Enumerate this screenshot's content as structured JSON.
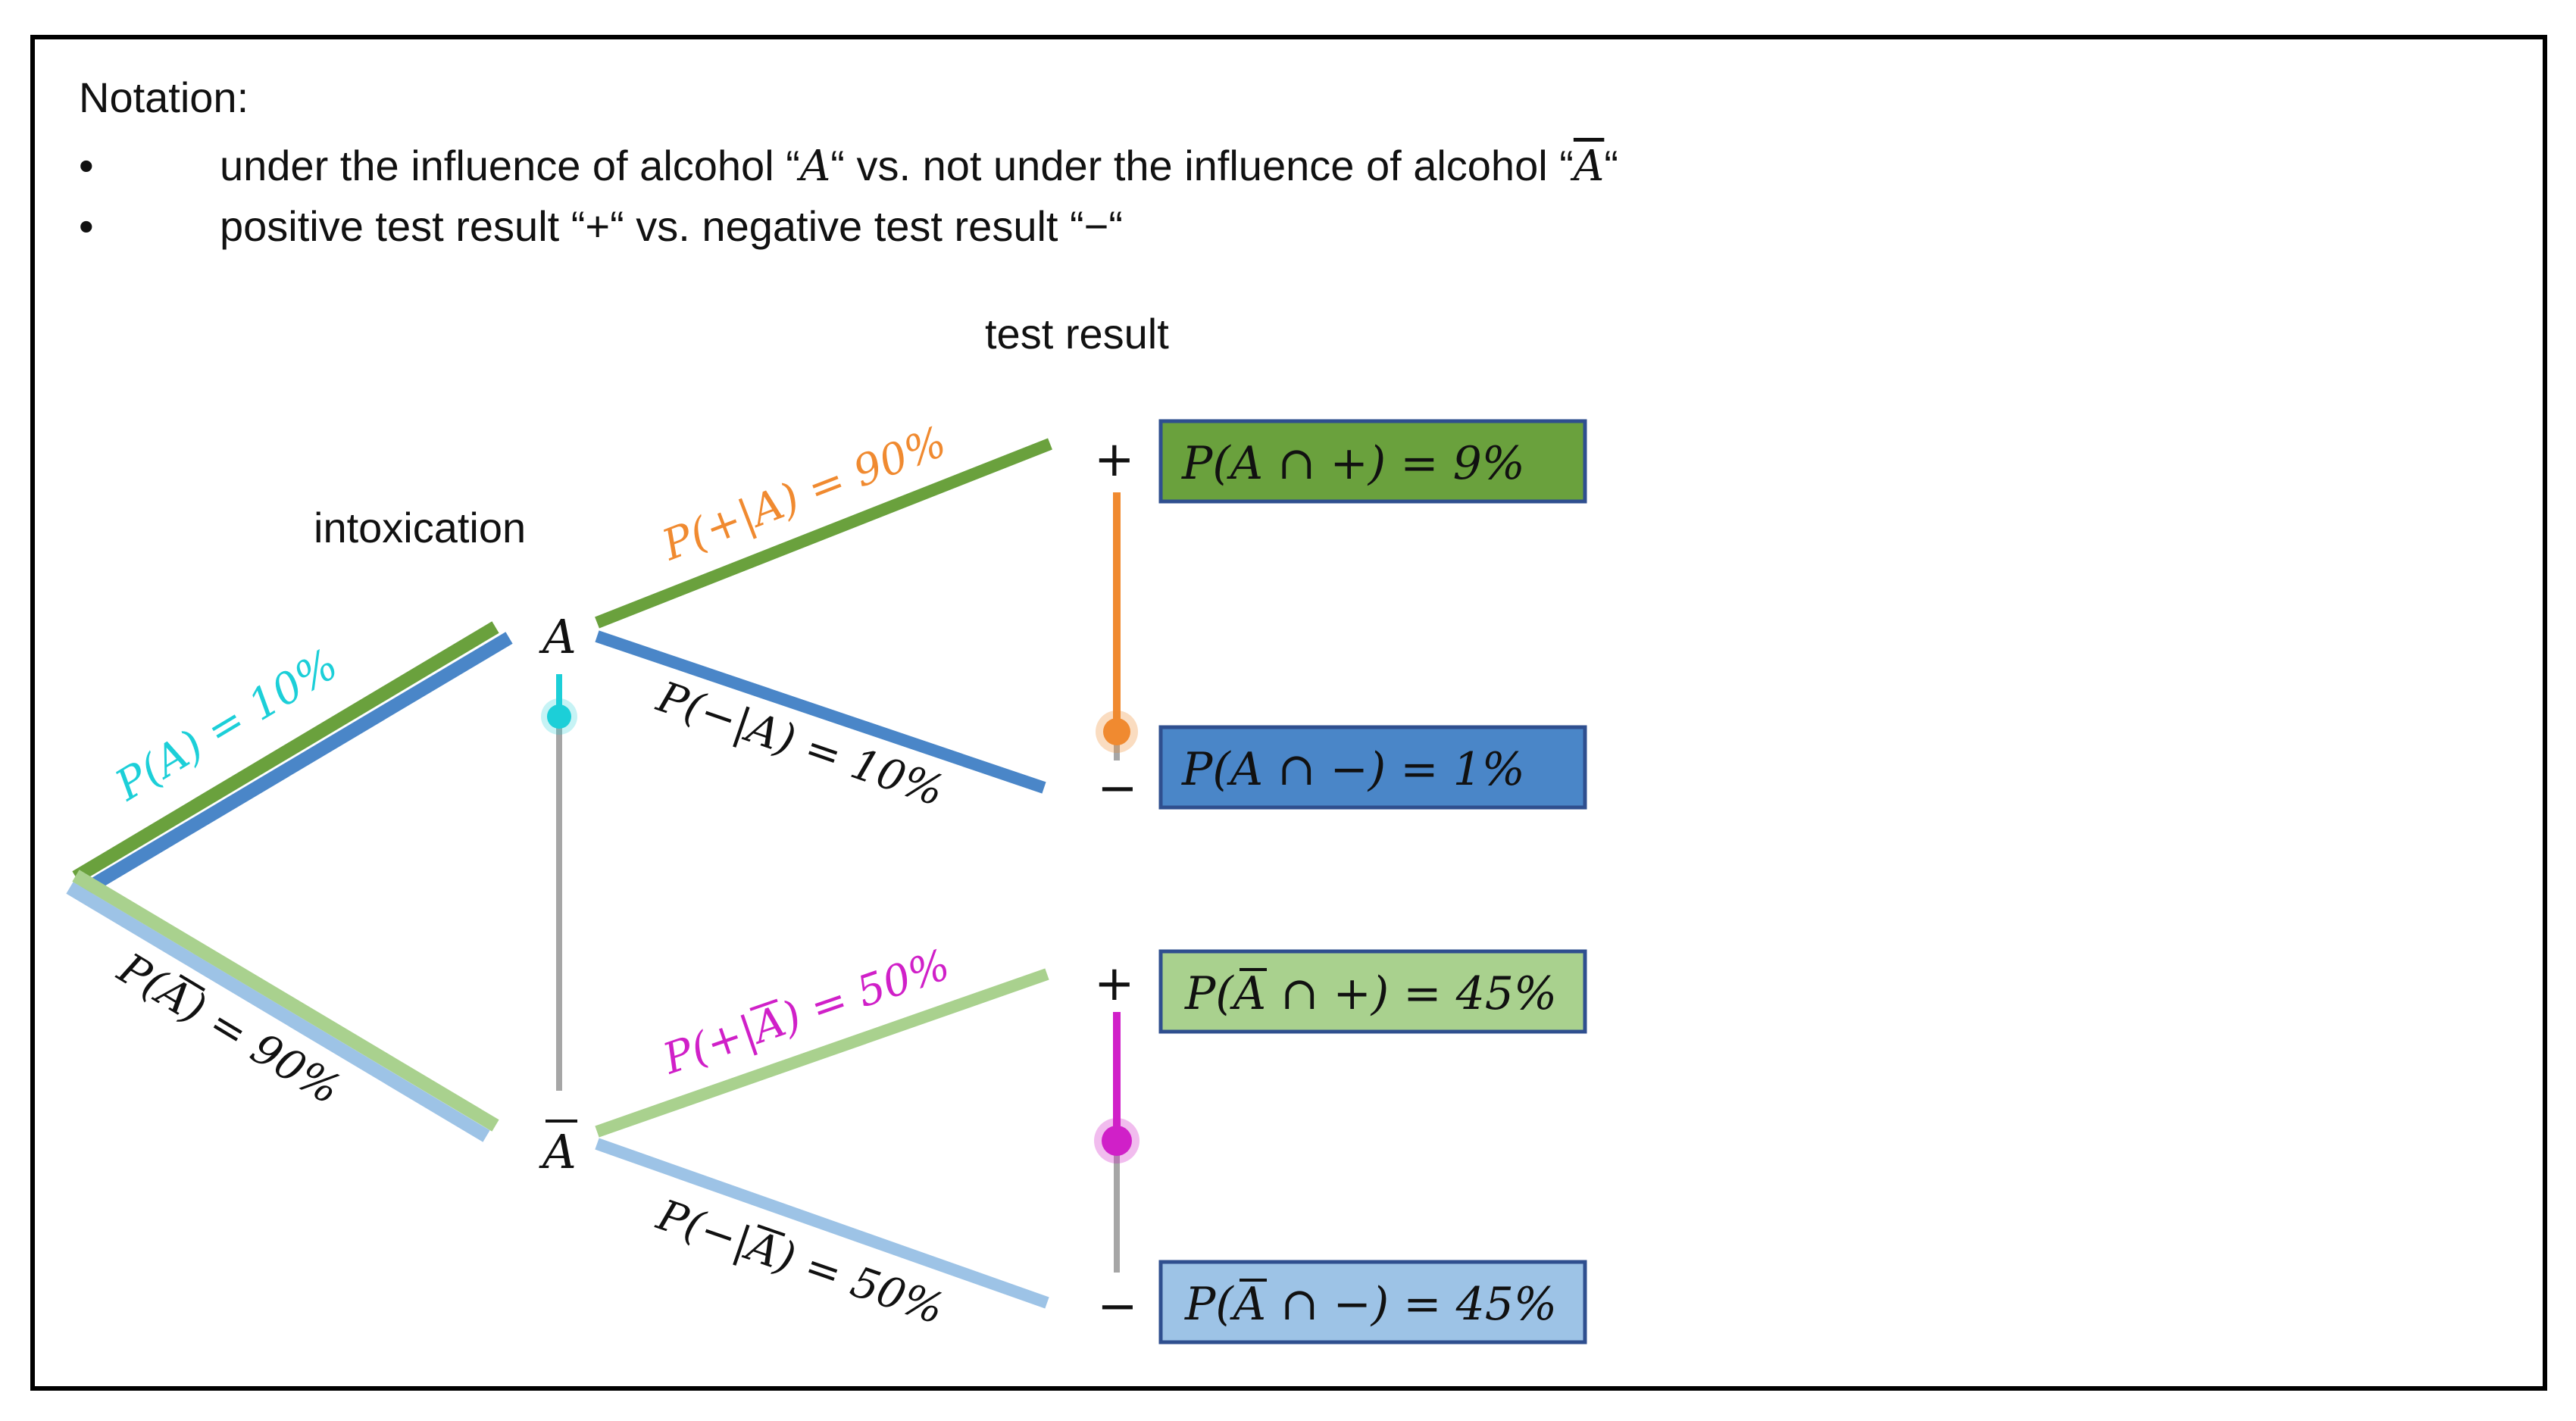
{
  "notation": {
    "heading": "Notation:",
    "bullets": [
      {
        "symbol": "•",
        "prefix": "under the influence of alcohol “",
        "var1": "A",
        "mid": "“ vs. not under the influence of alcohol “",
        "var2": "A",
        "suffix": "“"
      },
      {
        "symbol": "•",
        "prefix": "positive test result “+“ vs. negative test result “−“"
      }
    ]
  },
  "levels": {
    "intoxication": "intoxication",
    "test_result": "test result"
  },
  "nodes": {
    "A": "A",
    "A_bar": "A",
    "plus_top": "+",
    "minus_top": "−",
    "plus_bottom": "+",
    "minus_bottom": "−"
  },
  "branches": {
    "p_A": "P(A) = 10%",
    "p_notA": "P(A) = 90%",
    "p_plus_given_A": "P(+|A) = 90%",
    "p_minus_given_A": "P(−|A) = 10%",
    "p_plus_given_notA": "P(+|A) = 50%",
    "p_minus_given_notA": "P(−|A) = 50%"
  },
  "outcomes": {
    "A_and_plus": "P(A ∩ +) = 9%",
    "A_and_minus": "P(A ∩ −) = 1%",
    "notA_and_plus": "P(A ∩ +) = 45%",
    "notA_and_minus": "P(A ∩ −) = 45%"
  },
  "colors": {
    "dark_green": "#6aa13d",
    "dark_blue": "#4a86c8",
    "light_green": "#a9d18e",
    "light_blue": "#9dc3e6",
    "cyan": "#1ccfd8",
    "orange": "#f08a30",
    "magenta": "#d020c8",
    "gray": "#a6a6a6",
    "box_border": "#2f4f8f"
  }
}
